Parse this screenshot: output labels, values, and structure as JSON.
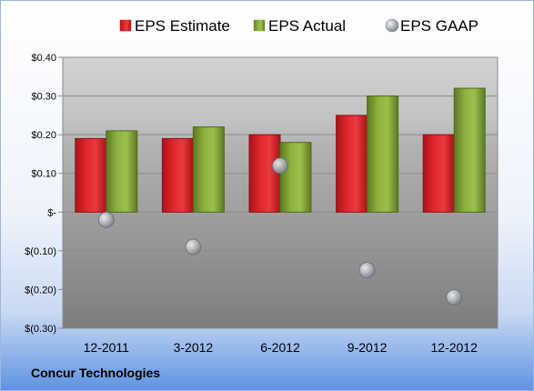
{
  "company": "Concur Technologies",
  "legend": [
    {
      "label": "EPS Estimate",
      "marker": "square",
      "color": "#d9252b"
    },
    {
      "label": "EPS Actual",
      "marker": "square",
      "color": "#88ad3c"
    },
    {
      "label": "EPS GAAP",
      "marker": "circle",
      "color": "#a9adb3"
    }
  ],
  "chart_data": {
    "type": "bar",
    "categories": [
      "12-2011",
      "3-2012",
      "6-2012",
      "9-2012",
      "12-2012"
    ],
    "series": [
      {
        "name": "EPS Estimate",
        "type": "bar",
        "color": "#d9252b",
        "values": [
          0.19,
          0.19,
          0.2,
          0.25,
          0.2
        ]
      },
      {
        "name": "EPS Actual",
        "type": "bar",
        "color": "#88ad3c",
        "values": [
          0.21,
          0.22,
          0.18,
          0.3,
          0.32
        ]
      },
      {
        "name": "EPS GAAP",
        "type": "scatter",
        "color": "#a9adb3",
        "values": [
          -0.02,
          -0.09,
          0.12,
          -0.15,
          -0.22
        ]
      }
    ],
    "yticks": [
      {
        "value": 0.4,
        "label": "$0.40"
      },
      {
        "value": 0.3,
        "label": "$0.30"
      },
      {
        "value": 0.2,
        "label": "$0.20"
      },
      {
        "value": 0.1,
        "label": "$0.10"
      },
      {
        "value": 0.0,
        "label": "$-"
      },
      {
        "value": -0.1,
        "label": "$(0.10)"
      },
      {
        "value": -0.2,
        "label": "$(0.20)"
      },
      {
        "value": -0.3,
        "label": "$(0.30)"
      }
    ],
    "ylim": [
      -0.3,
      0.4
    ],
    "grid": true,
    "legend_position": "top"
  }
}
